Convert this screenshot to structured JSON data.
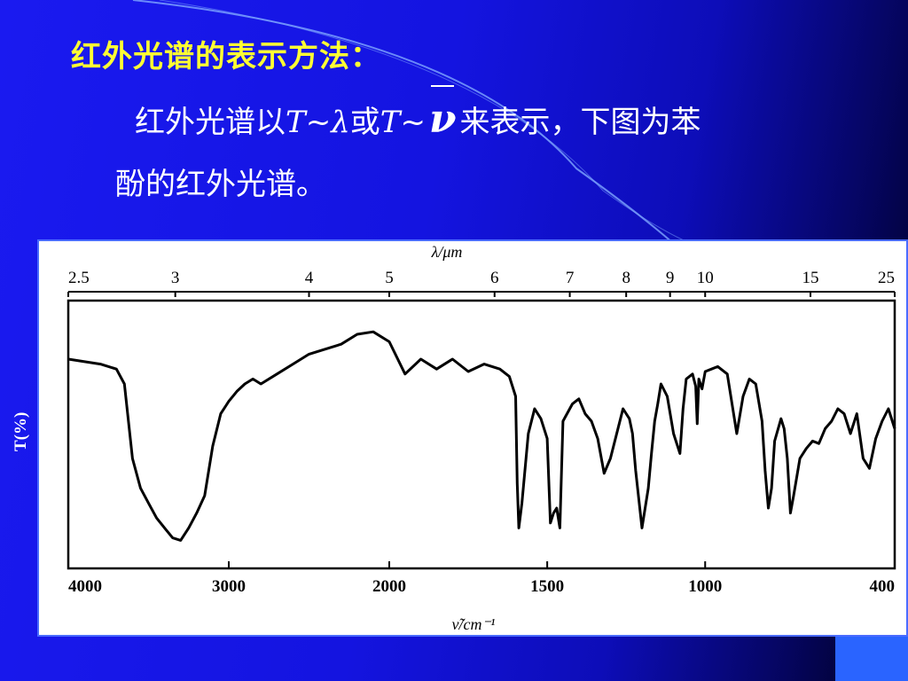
{
  "slide": {
    "heading": "红外光谱的表示方法",
    "heading_colon": "：",
    "para": {
      "part1": "红外光谱以",
      "T1": "T",
      "tilde1": "~",
      "lambda": "λ",
      "or": "或",
      "T2": "T",
      "tilde2": "~",
      "nu": "ν",
      "part2": "来表示，下图为苯",
      "line2": "酚的红外光谱。"
    }
  },
  "chart_data": {
    "type": "line",
    "title": "",
    "ylabel": "T(%)",
    "xlabel_bottom": "ν̃/cm⁻¹",
    "xlabel_top": "λ/μm",
    "bottom_ticks": [
      "4000",
      "3000",
      "2000",
      "1500",
      "1000",
      "400"
    ],
    "top_ticks": [
      "2.5",
      "3",
      "4",
      "5",
      "6",
      "7",
      "8",
      "9",
      "10",
      "15",
      "25"
    ],
    "colors": {
      "trace": "#000000",
      "frame": "#000000"
    },
    "series": [
      {
        "x": [
          4000,
          3800,
          3700,
          3650,
          3600,
          3550,
          3500,
          3450,
          3400,
          3350,
          3300,
          3250,
          3200,
          3150,
          3100,
          3050,
          3000,
          2950,
          2900,
          2850,
          2800,
          2700,
          2600,
          2500,
          2400,
          2300,
          2200,
          2100,
          2000,
          1950,
          1900,
          1850,
          1800,
          1750,
          1700,
          1650,
          1620,
          1600,
          1595,
          1590,
          1580,
          1560,
          1540,
          1520,
          1500,
          1490,
          1480,
          1470,
          1460,
          1450,
          1420,
          1400,
          1380,
          1360,
          1340,
          1320,
          1300,
          1280,
          1260,
          1240,
          1230,
          1220,
          1200,
          1180,
          1170,
          1160,
          1150,
          1140,
          1120,
          1100,
          1080,
          1070,
          1060,
          1040,
          1030,
          1025,
          1020,
          1010,
          1000,
          980,
          960,
          930,
          900,
          880,
          860,
          840,
          820,
          810,
          800,
          790,
          780,
          760,
          750,
          740,
          730,
          720,
          700,
          680,
          660,
          640,
          620,
          600,
          580,
          560,
          540,
          520,
          500,
          480,
          460,
          440,
          420,
          400
        ],
        "y": [
          80,
          78,
          76,
          70,
          40,
          28,
          22,
          16,
          12,
          8,
          7,
          12,
          18,
          25,
          45,
          58,
          63,
          67,
          70,
          72,
          70,
          74,
          78,
          82,
          84,
          86,
          90,
          91,
          87,
          74,
          80,
          76,
          80,
          75,
          78,
          76,
          73,
          65,
          30,
          12,
          22,
          50,
          60,
          56,
          48,
          14,
          18,
          20,
          12,
          55,
          62,
          64,
          58,
          55,
          48,
          34,
          40,
          50,
          60,
          56,
          50,
          35,
          12,
          28,
          42,
          55,
          62,
          70,
          65,
          50,
          42,
          60,
          72,
          74,
          69,
          54,
          72,
          68,
          75,
          76,
          77,
          74,
          50,
          65,
          72,
          70,
          55,
          35,
          20,
          28,
          47,
          56,
          52,
          40,
          18,
          25,
          40,
          44,
          47,
          46,
          52,
          55,
          60,
          58,
          50,
          58,
          40,
          36,
          48,
          55,
          60,
          52
        ]
      }
    ]
  }
}
